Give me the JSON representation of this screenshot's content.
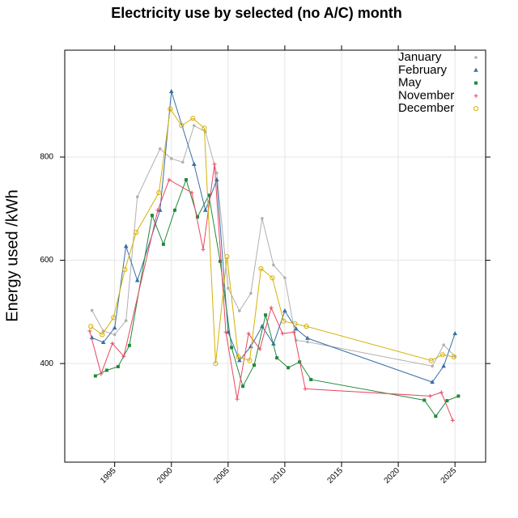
{
  "chart_data": {
    "type": "line",
    "title": "Electricity use by selected (no A/C) month",
    "y_label": "Energy used /kWh",
    "xlim": [
      1990.6,
      2027.7
    ],
    "ylim": [
      209,
      1007
    ],
    "xticks": [
      1995,
      2000,
      2005,
      2010,
      2015,
      2020,
      2025
    ],
    "yticks": [
      400,
      600,
      800
    ],
    "grid": true,
    "legend": "top-right",
    "series": [
      {
        "name": "January",
        "color": "#b0b0b0",
        "marker": "dot",
        "x": [
          1993,
          1994,
          1995,
          1996,
          1997,
          1999,
          2000,
          2001,
          2002,
          2003,
          2004,
          2005,
          2006,
          2007,
          2008,
          2009,
          2010,
          2011,
          2012,
          2023,
          2024,
          2025
        ],
        "values": [
          503,
          463,
          456,
          483,
          723,
          816,
          797,
          790,
          861,
          849,
          769,
          546,
          502,
          536,
          681,
          591,
          566,
          445,
          442,
          395,
          436,
          414
        ]
      },
      {
        "name": "February",
        "color": "#3a6ea5",
        "marker": "triangle",
        "x": [
          1993,
          1994,
          1995,
          1996,
          1997,
          1999,
          2000,
          2002,
          2003,
          2004,
          2005,
          2006,
          2007,
          2008,
          2009,
          2010,
          2011,
          2012,
          2023,
          2024,
          2025
        ],
        "values": [
          450,
          441,
          469,
          627,
          561,
          697,
          927,
          786,
          697,
          756,
          461,
          406,
          433,
          472,
          438,
          502,
          467,
          449,
          364,
          395,
          458
        ]
      },
      {
        "name": "May",
        "color": "#1f8a3c",
        "marker": "square",
        "x": [
          1993.3,
          1994.3,
          1995.3,
          1996.3,
          1998.3,
          1999.3,
          2000.3,
          2001.3,
          2002.3,
          2003.3,
          2004.3,
          2005.3,
          2006.3,
          2007.3,
          2008.3,
          2009.3,
          2010.3,
          2011.3,
          2012.3,
          2022.3,
          2023.3,
          2024.3,
          2025.3
        ],
        "values": [
          376,
          387,
          394,
          435,
          687,
          631,
          697,
          756,
          684,
          726,
          598,
          431,
          356,
          397,
          494,
          411,
          392,
          403,
          369,
          329,
          298,
          328,
          337
        ]
      },
      {
        "name": "November",
        "color": "#e8475f",
        "marker": "plus",
        "x": [
          1992.8,
          1993.8,
          1994.8,
          1995.8,
          1998.8,
          1999.8,
          2001.8,
          2002.8,
          2003.8,
          2004.8,
          2005.8,
          2006.8,
          2007.8,
          2008.8,
          2009.8,
          2010.8,
          2011.8,
          2022.8,
          2023.8,
          2024.8
        ],
        "values": [
          463,
          380,
          439,
          414,
          697,
          756,
          731,
          621,
          786,
          461,
          331,
          458,
          428,
          508,
          458,
          461,
          351,
          337,
          344,
          290
        ]
      },
      {
        "name": "December",
        "color": "#d4b106",
        "marker": "circle",
        "x": [
          1992.9,
          1993.9,
          1994.9,
          1995.9,
          1996.9,
          1998.9,
          1999.9,
          2000.9,
          2001.9,
          2002.9,
          2003.9,
          2004.9,
          2005.9,
          2006.9,
          2007.9,
          2008.9,
          2009.9,
          2010.9,
          2011.9,
          2022.9,
          2023.9,
          2024.9
        ],
        "values": [
          472,
          456,
          489,
          582,
          654,
          731,
          893,
          861,
          875,
          856,
          400,
          607,
          413,
          406,
          584,
          566,
          482,
          477,
          472,
          406,
          417,
          413
        ]
      }
    ]
  }
}
